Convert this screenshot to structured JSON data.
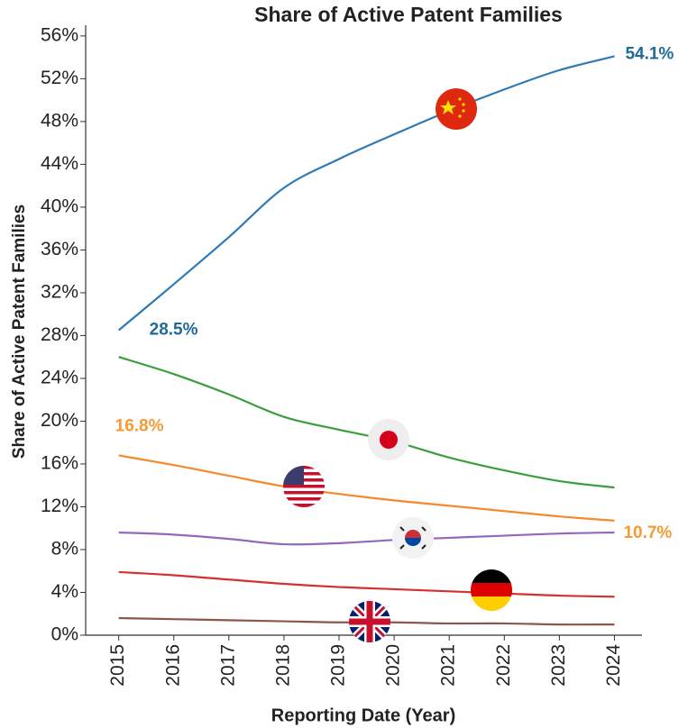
{
  "chart_data": {
    "type": "line",
    "title": "Share of Active Patent Families",
    "y_label": "Share of Active Patent Families",
    "x_label": "Reporting Date (Year)",
    "x": [
      2015,
      2016,
      2017,
      2018,
      2019,
      2020,
      2021,
      2022,
      2023,
      2024
    ],
    "xlim": [
      2014.4,
      2024.5
    ],
    "xticks": [
      2015,
      2016,
      2017,
      2018,
      2019,
      2020,
      2021,
      2022,
      2023,
      2024
    ],
    "ylim": [
      0,
      57
    ],
    "yticks": [
      {
        "value": 0,
        "label": "0%"
      },
      {
        "value": 4,
        "label": "4%"
      },
      {
        "value": 8,
        "label": "8%"
      },
      {
        "value": 12,
        "label": "12%"
      },
      {
        "value": 16,
        "label": "16%"
      },
      {
        "value": 20,
        "label": "20%"
      },
      {
        "value": 24,
        "label": "24%"
      },
      {
        "value": 28,
        "label": "28%"
      },
      {
        "value": 32,
        "label": "32%"
      },
      {
        "value": 36,
        "label": "36%"
      },
      {
        "value": 40,
        "label": "40%"
      },
      {
        "value": 44,
        "label": "44%"
      },
      {
        "value": 48,
        "label": "48%"
      },
      {
        "value": 52,
        "label": "52%"
      },
      {
        "value": 56,
        "label": "56%"
      }
    ],
    "grid": false,
    "series": [
      {
        "color": "#2f7ab5",
        "values": [
          28.5,
          32.8,
          37.2,
          41.8,
          44.5,
          46.8,
          49.0,
          51.0,
          52.8,
          54.1
        ],
        "value_labels": [
          "28.5%",
          null,
          null,
          null,
          null,
          null,
          null,
          null,
          null,
          "54.1%"
        ],
        "label_color": "#1f6a99"
      },
      {
        "color": "#3a9e3a",
        "values": [
          26.0,
          24.4,
          22.5,
          20.4,
          19.2,
          18.1,
          16.6,
          15.4,
          14.4,
          13.8
        ]
      },
      {
        "color": "#f7892a",
        "values": [
          16.8,
          15.9,
          14.9,
          13.9,
          13.2,
          12.6,
          12.1,
          11.6,
          11.1,
          10.7
        ],
        "value_labels": [
          "16.8%",
          null,
          null,
          null,
          null,
          null,
          null,
          null,
          null,
          "10.7%"
        ],
        "label_color": "#f59a36"
      },
      {
        "color": "#9467bd",
        "values": [
          9.6,
          9.4,
          9.0,
          8.5,
          8.6,
          8.9,
          9.1,
          9.3,
          9.5,
          9.6
        ]
      },
      {
        "color": "#d62f2f",
        "values": [
          5.9,
          5.6,
          5.2,
          4.8,
          4.5,
          4.3,
          4.1,
          3.9,
          3.7,
          3.6
        ]
      },
      {
        "color": "#8c564b",
        "values": [
          1.6,
          1.5,
          1.4,
          1.3,
          1.2,
          1.2,
          1.1,
          1.1,
          1.0,
          1.0
        ]
      }
    ]
  }
}
